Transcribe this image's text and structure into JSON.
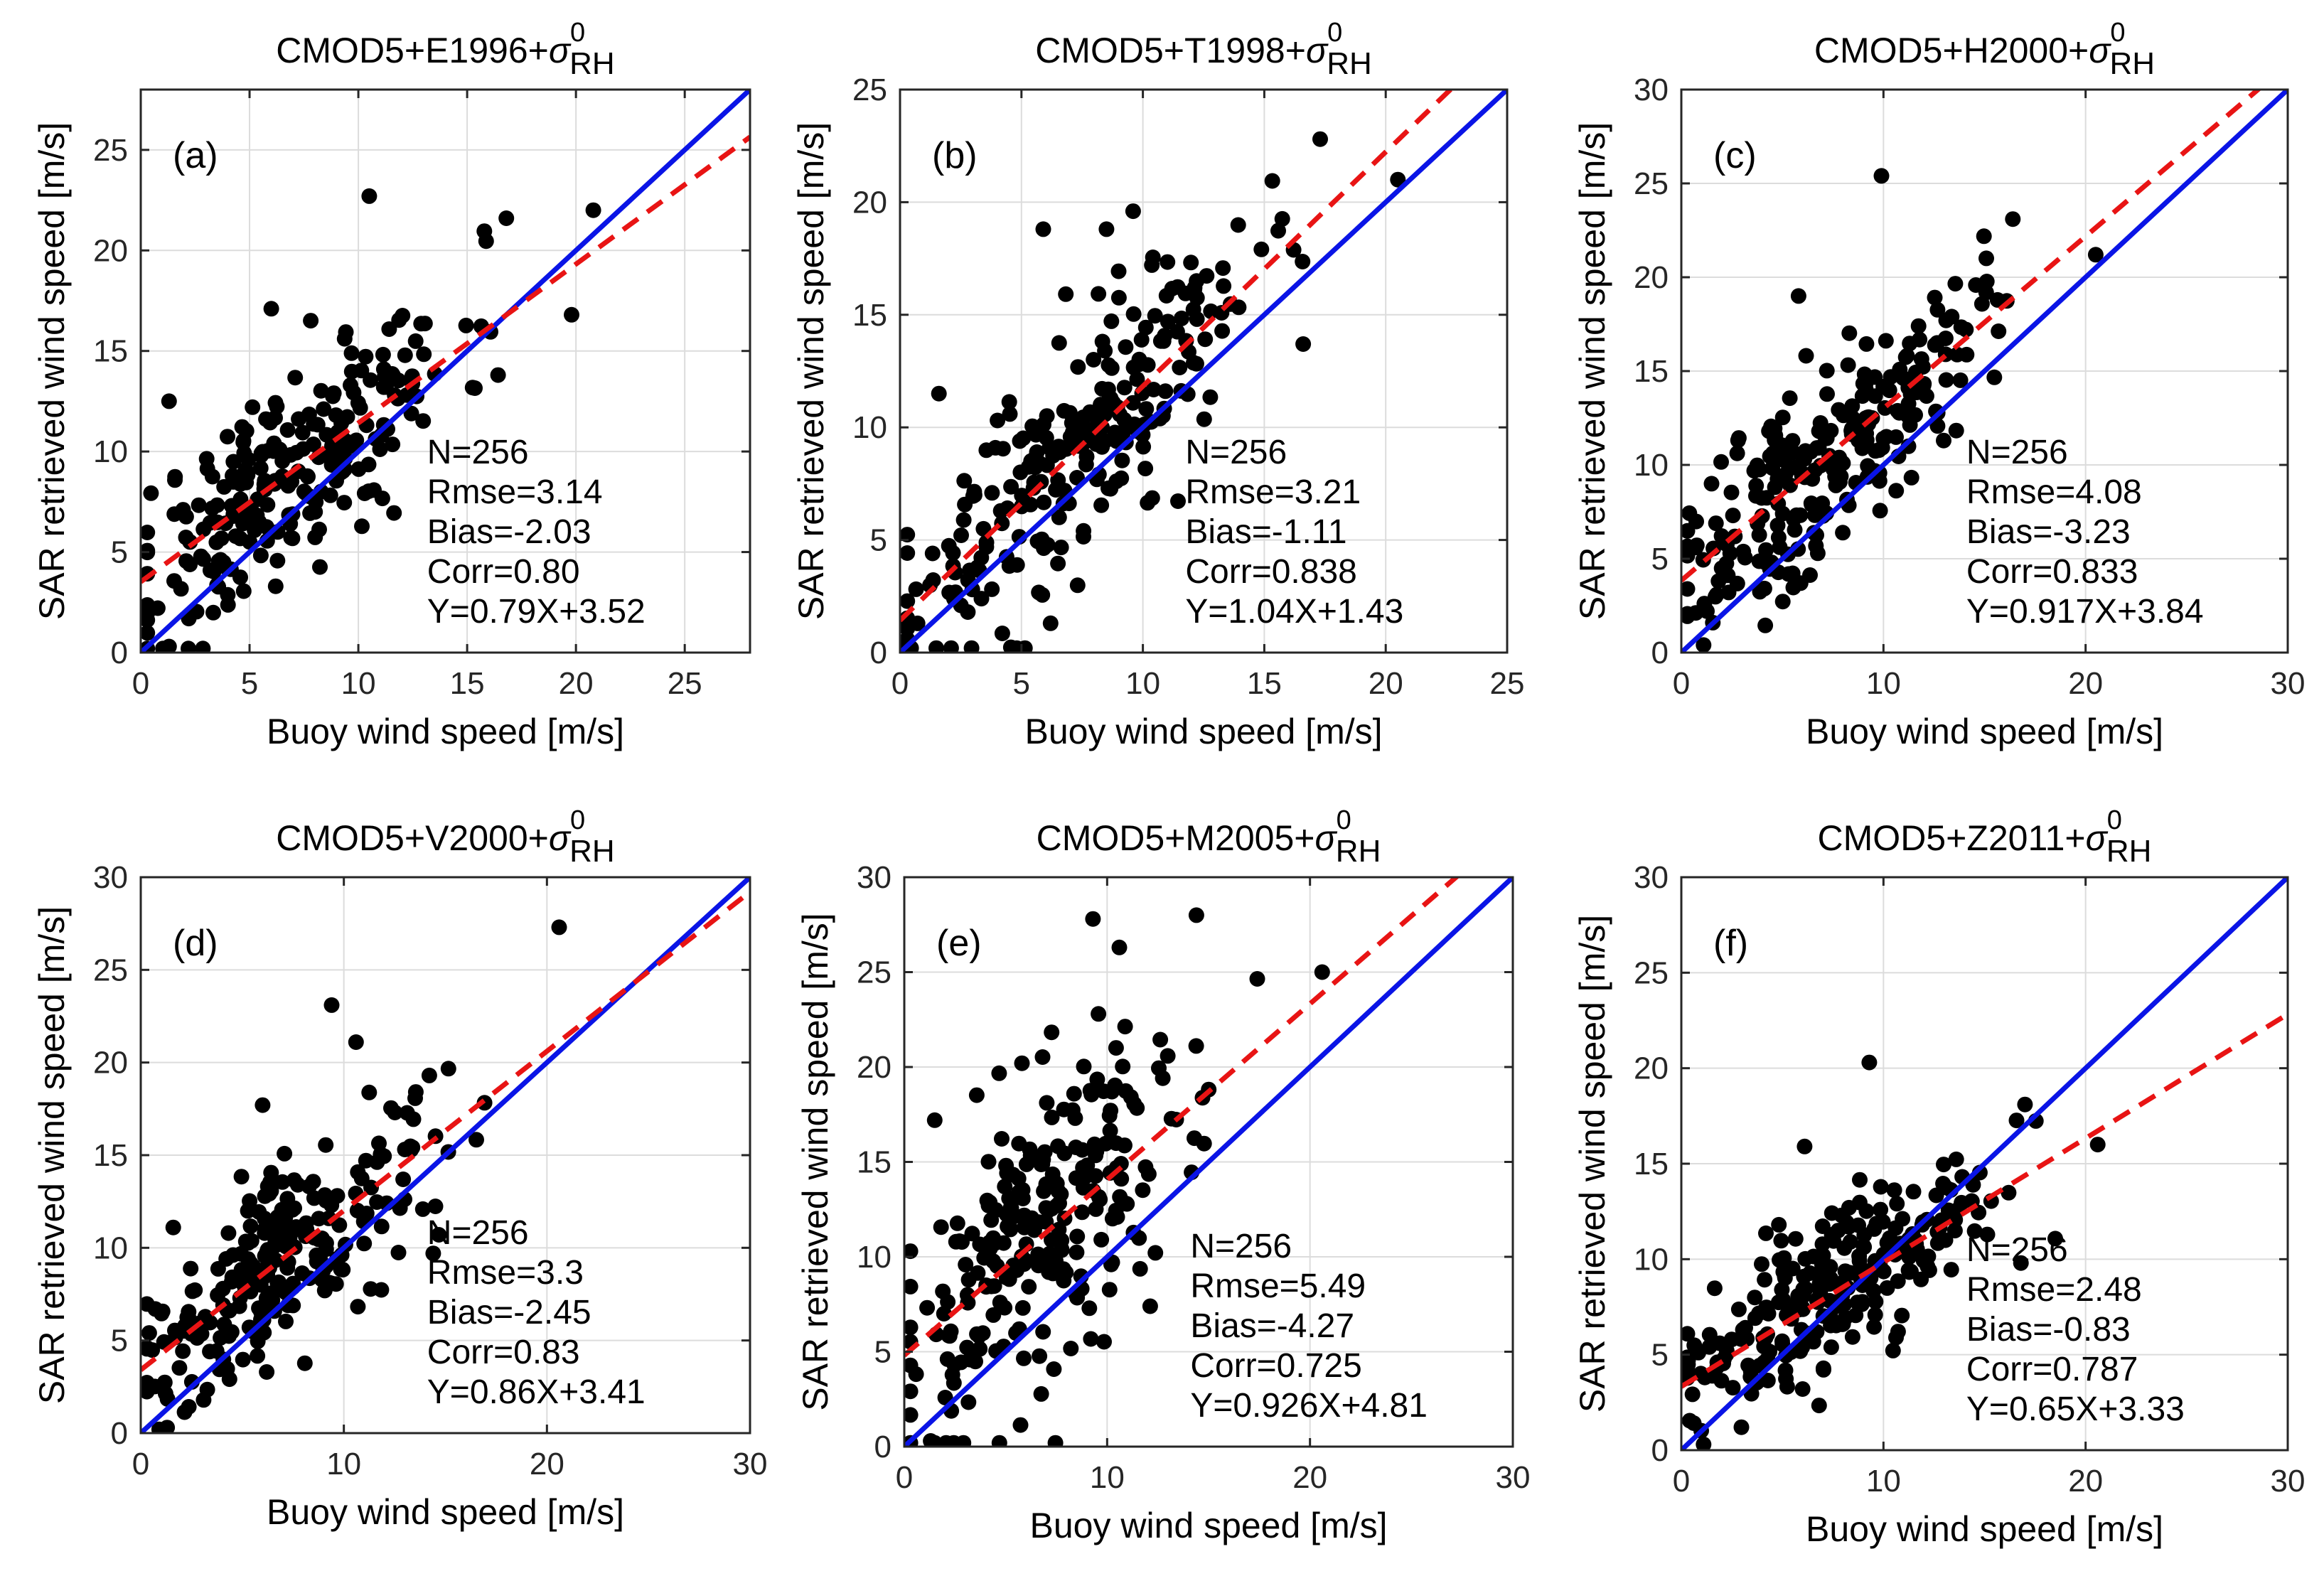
{
  "chart_data": [
    {
      "type": "scatter",
      "panel": "(a)",
      "title": "CMOD5+E1996+",
      "title_symbol": "σ",
      "title_sup": "0",
      "title_sub": "RH",
      "xlabel": "Buoy wind speed [m/s]",
      "ylabel": "SAR retrieved wind speed [m/s]",
      "xlim": [
        0,
        28
      ],
      "ylim": [
        0,
        28
      ],
      "xticks": [
        "0",
        "5",
        "10",
        "15",
        "20",
        "25"
      ],
      "yticks": [
        "0",
        "5",
        "10",
        "15",
        "20",
        "25"
      ],
      "tick_values": [
        0,
        5,
        10,
        15,
        20,
        25
      ],
      "stats": [
        "N=256",
        "Rmse=3.14",
        "Bias=-2.03",
        "Corr=0.80",
        "Y=0.79X+3.52"
      ],
      "fit": {
        "slope": 0.79,
        "intercept": 3.52
      },
      "highlight_points": [
        [
          10.5,
          22.7
        ],
        [
          6.0,
          17.1
        ],
        [
          20.8,
          22.0
        ],
        [
          16.8,
          21.6
        ],
        [
          19.8,
          16.8
        ],
        [
          1.3,
          12.5
        ],
        [
          1.3,
          0.3
        ],
        [
          6.2,
          3.3
        ]
      ],
      "point_seed": 11,
      "point_noise": 2.5,
      "series": [
        {
          "name": "data",
          "color": "#000000"
        },
        {
          "name": "1:1 line",
          "color": "#0a14e6"
        },
        {
          "name": "regression",
          "color": "#e81414"
        }
      ]
    },
    {
      "type": "scatter",
      "panel": "(b)",
      "title": "CMOD5+T1998+",
      "title_symbol": "σ",
      "title_sup": "0",
      "title_sub": "RH",
      "xlabel": "Buoy wind speed [m/s]",
      "ylabel": "SAR retrieved wind speed [m/s]",
      "xlim": [
        0,
        25
      ],
      "ylim": [
        0,
        25
      ],
      "xticks": [
        "0",
        "5",
        "10",
        "15",
        "20",
        "25"
      ],
      "yticks": [
        "0",
        "5",
        "10",
        "15",
        "20",
        "25"
      ],
      "tick_values": [
        0,
        5,
        10,
        15,
        20,
        25
      ],
      "stats": [
        "N=256",
        "Rmse=3.21",
        "Bias=-1.11",
        "Corr=0.838",
        "Y=1.04X+1.43"
      ],
      "fit": {
        "slope": 1.04,
        "intercept": 1.43
      },
      "highlight_points": [
        [
          17.3,
          22.8
        ],
        [
          20.5,
          21.0
        ],
        [
          9.6,
          19.6
        ],
        [
          5.9,
          18.8
        ],
        [
          8.5,
          18.8
        ],
        [
          1.6,
          11.5
        ],
        [
          6.2,
          1.3
        ],
        [
          16.6,
          13.7
        ]
      ],
      "point_seed": 23,
      "point_noise": 2.4,
      "series": [
        {
          "name": "data",
          "color": "#000000"
        },
        {
          "name": "1:1 line",
          "color": "#0a14e6"
        },
        {
          "name": "regression",
          "color": "#e81414"
        }
      ]
    },
    {
      "type": "scatter",
      "panel": "(c)",
      "title": "CMOD5+H2000+",
      "title_symbol": "σ",
      "title_sup": "0",
      "title_sub": "RH",
      "xlabel": "Buoy wind speed [m/s]",
      "ylabel": "SAR retrieved wind speed [m/s]",
      "xlim": [
        0,
        30
      ],
      "ylim": [
        0,
        30
      ],
      "xticks": [
        "0",
        "10",
        "20",
        "30"
      ],
      "yticks": [
        "0",
        "5",
        "10",
        "15",
        "20",
        "25",
        "30"
      ],
      "x_tick_values": [
        0,
        10,
        20,
        30
      ],
      "tick_values": [
        0,
        5,
        10,
        15,
        20,
        25,
        30
      ],
      "stats": [
        "N=256",
        "Rmse=4.08",
        "Bias=-3.23",
        "Corr=0.833",
        "Y=0.917X+3.84"
      ],
      "fit": {
        "slope": 0.917,
        "intercept": 3.84
      },
      "highlight_points": [
        [
          9.9,
          25.4
        ],
        [
          16.4,
          23.1
        ],
        [
          20.5,
          21.2
        ],
        [
          5.8,
          19.0
        ],
        [
          13.1,
          17.7
        ],
        [
          1.1,
          0.4
        ],
        [
          5.9,
          3.7
        ]
      ],
      "point_seed": 37,
      "point_noise": 2.6,
      "series": [
        {
          "name": "data",
          "color": "#000000"
        },
        {
          "name": "1:1 line",
          "color": "#0a14e6"
        },
        {
          "name": "regression",
          "color": "#e81414"
        }
      ]
    },
    {
      "type": "scatter",
      "panel": "(d)",
      "title": "CMOD5+V2000+",
      "title_symbol": "σ",
      "title_sup": "0",
      "title_sub": "RH",
      "xlabel": "Buoy wind speed [m/s]",
      "ylabel": "SAR retrieved wind speed [m/s]",
      "xlim": [
        0,
        30
      ],
      "ylim": [
        0,
        30
      ],
      "xticks": [
        "0",
        "10",
        "20",
        "30"
      ],
      "yticks": [
        "0",
        "5",
        "10",
        "15",
        "20",
        "25",
        "30"
      ],
      "x_tick_values": [
        0,
        10,
        20,
        30
      ],
      "tick_values": [
        0,
        5,
        10,
        15,
        20,
        25,
        30
      ],
      "stats": [
        "N=256",
        "Rmse=3.3",
        "Bias=-2.45",
        "Corr=0.83",
        "Y=0.86X+3.41"
      ],
      "fit": {
        "slope": 0.86,
        "intercept": 3.41
      },
      "highlight_points": [
        [
          20.6,
          27.3
        ],
        [
          9.4,
          23.1
        ],
        [
          10.6,
          21.1
        ],
        [
          6.0,
          17.7
        ],
        [
          1.6,
          11.1
        ],
        [
          1.3,
          0.3
        ],
        [
          6.2,
          3.3
        ],
        [
          14.4,
          9.7
        ]
      ],
      "point_seed": 41,
      "point_noise": 2.3,
      "series": [
        {
          "name": "data",
          "color": "#000000"
        },
        {
          "name": "1:1 line",
          "color": "#0a14e6"
        },
        {
          "name": "regression",
          "color": "#e81414"
        }
      ]
    },
    {
      "type": "scatter",
      "panel": "(e)",
      "title": "CMOD5+M2005+",
      "title_symbol": "σ",
      "title_sup": "0",
      "title_sub": "RH",
      "xlabel": "Buoy wind speed [m/s]",
      "ylabel": "SAR retrieved wind speed [m/s]",
      "xlim": [
        0,
        30
      ],
      "ylim": [
        0,
        30
      ],
      "xticks": [
        "0",
        "10",
        "20",
        "30"
      ],
      "yticks": [
        "0",
        "5",
        "10",
        "15",
        "20",
        "25",
        "30"
      ],
      "x_tick_values": [
        0,
        10,
        20,
        30
      ],
      "tick_values": [
        0,
        5,
        10,
        15,
        20,
        25,
        30
      ],
      "stats": [
        "N=256",
        "Rmse=5.49",
        "Bias=-4.27",
        "Corr=0.725",
        "Y=0.926X+4.81"
      ],
      "fit": {
        "slope": 0.926,
        "intercept": 4.81
      },
      "highlight_points": [
        [
          9.3,
          27.8
        ],
        [
          10.6,
          26.3
        ],
        [
          14.4,
          28.0
        ],
        [
          20.6,
          25.0
        ],
        [
          1.5,
          17.2
        ],
        [
          5.8,
          20.2
        ],
        [
          1.3,
          0.3
        ],
        [
          10.2,
          9.6
        ]
      ],
      "point_seed": 53,
      "point_noise": 4.2,
      "series": [
        {
          "name": "data",
          "color": "#000000"
        },
        {
          "name": "1:1 line",
          "color": "#0a14e6"
        },
        {
          "name": "regression",
          "color": "#e81414"
        }
      ]
    },
    {
      "type": "scatter",
      "panel": "(f)",
      "title": "CMOD5+Z2011+",
      "title_symbol": "σ",
      "title_sup": "0",
      "title_sub": "RH",
      "xlabel": "Buoy wind speed [m/s]",
      "ylabel": "SAR retrieved wind speed [m/s]",
      "xlim": [
        0,
        30
      ],
      "ylim": [
        0,
        30
      ],
      "xticks": [
        "0",
        "10",
        "20",
        "30"
      ],
      "yticks": [
        "0",
        "5",
        "10",
        "15",
        "20",
        "25",
        "30"
      ],
      "x_tick_values": [
        0,
        10,
        20,
        30
      ],
      "tick_values": [
        0,
        5,
        10,
        15,
        20,
        25,
        30
      ],
      "stats": [
        "N=256",
        "Rmse=2.48",
        "Bias=-0.83",
        "Corr=0.787",
        "Y=0.65X+3.33"
      ],
      "fit": {
        "slope": 0.65,
        "intercept": 3.33
      },
      "highlight_points": [
        [
          9.3,
          20.3
        ],
        [
          20.6,
          16.0
        ],
        [
          17.0,
          18.1
        ],
        [
          6.1,
          15.9
        ],
        [
          1.1,
          0.3
        ],
        [
          16.8,
          9.8
        ],
        [
          6.0,
          3.2
        ]
      ],
      "point_seed": 67,
      "point_noise": 2.0,
      "series": [
        {
          "name": "data",
          "color": "#000000"
        },
        {
          "name": "1:1 line",
          "color": "#0a14e6"
        },
        {
          "name": "regression",
          "color": "#e81414"
        }
      ]
    }
  ]
}
